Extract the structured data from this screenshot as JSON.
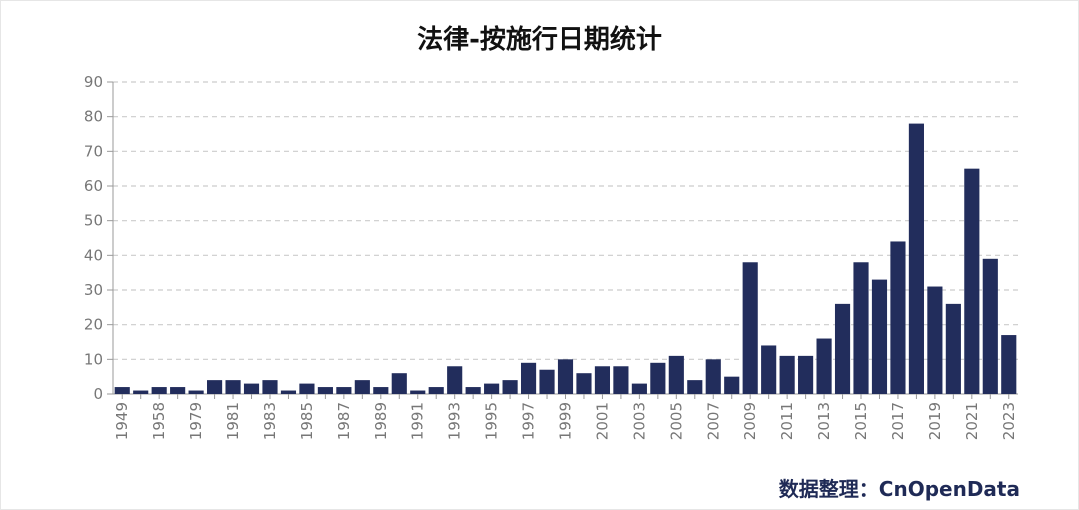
{
  "title": "法律-按施行日期统计",
  "source_note": "数据整理：CnOpenData",
  "colors": {
    "bar": "#222d5c",
    "grid": "#cccccc",
    "axis": "#999999"
  },
  "chart_data": {
    "type": "bar",
    "title": "法律-按施行日期统计",
    "xlabel": "",
    "ylabel": "",
    "ylim": [
      0,
      90
    ],
    "yticks": [
      0,
      10,
      20,
      30,
      40,
      50,
      60,
      70,
      80,
      90
    ],
    "grid": true,
    "categories": [
      "1949",
      "1957",
      "1958",
      "1965",
      "1979",
      "1980",
      "1981",
      "1982",
      "1983",
      "1984",
      "1985",
      "1986",
      "1987",
      "1988",
      "1989",
      "1990",
      "1991",
      "1992",
      "1993",
      "1994",
      "1995",
      "1996",
      "1997",
      "1998",
      "1999",
      "2000",
      "2001",
      "2002",
      "2003",
      "2004",
      "2005",
      "2006",
      "2007",
      "2008",
      "2009",
      "2010",
      "2011",
      "2012",
      "2013",
      "2014",
      "2015",
      "2016",
      "2017",
      "2018",
      "2019",
      "2020",
      "2021",
      "2022",
      "2023"
    ],
    "values": [
      2,
      1,
      2,
      2,
      1,
      4,
      4,
      3,
      4,
      1,
      3,
      2,
      2,
      4,
      2,
      6,
      1,
      2,
      8,
      2,
      3,
      4,
      9,
      7,
      10,
      6,
      8,
      8,
      3,
      9,
      11,
      4,
      10,
      5,
      38,
      14,
      11,
      11,
      16,
      26,
      38,
      33,
      44,
      78,
      31,
      26,
      65,
      39,
      17
    ],
    "xtick_labels_shown": [
      "1949",
      "1958",
      "1979",
      "1981",
      "1983",
      "1985",
      "1987",
      "1989",
      "1991",
      "1993",
      "1995",
      "1997",
      "1999",
      "2001",
      "2003",
      "2005",
      "2007",
      "2009",
      "2011",
      "2013",
      "2015",
      "2017",
      "2019",
      "2021",
      "2023"
    ]
  }
}
